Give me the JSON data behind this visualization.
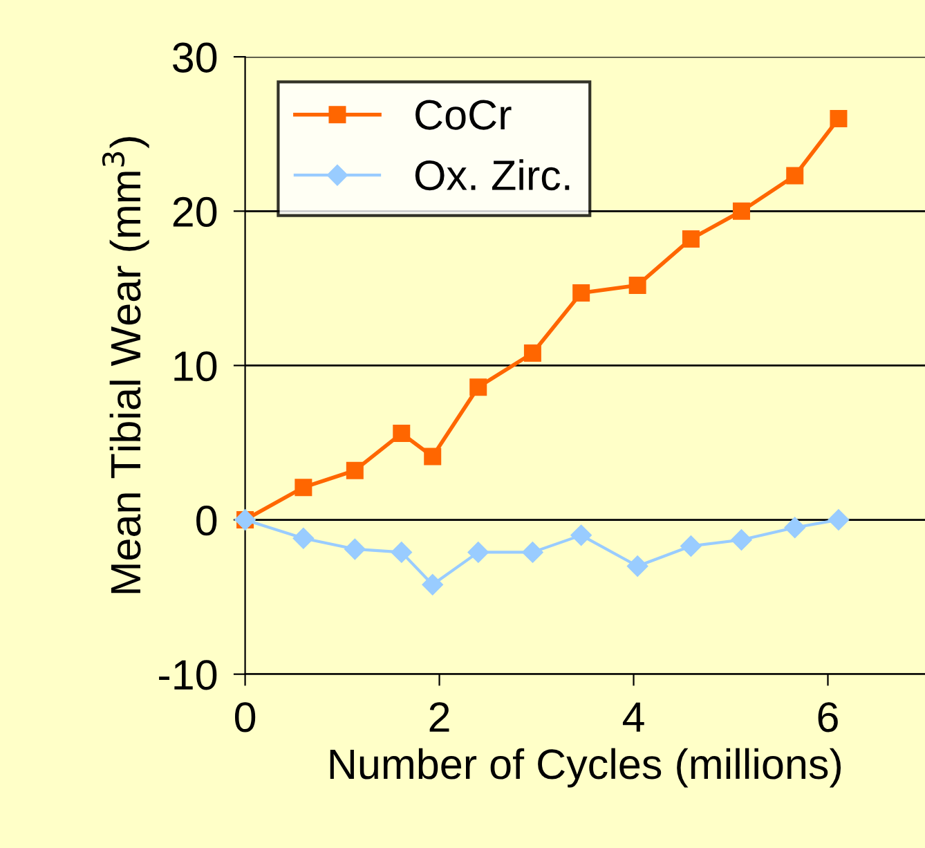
{
  "chart_data": {
    "type": "line",
    "xlabel": "Number of Cycles (millions)",
    "ylabel": "Mean Tibial Wear (mm$^{3}$)",
    "xlim": [
      0,
      7
    ],
    "xticks": [
      0,
      2,
      4,
      6
    ],
    "ylim": [
      -10,
      30
    ],
    "yticks": [
      -10,
      0,
      10,
      20,
      30
    ],
    "grid": "y",
    "legend": "top left",
    "line_style": "solid",
    "x": [
      0,
      0.6,
      1.13,
      1.61,
      1.93,
      2.4,
      2.96,
      3.46,
      4.04,
      4.59,
      5.11,
      5.66,
      6.11
    ],
    "series": [
      {
        "name": "CoCr",
        "color": "#ff6600",
        "marker": "square",
        "values": [
          0,
          2.1,
          3.2,
          5.6,
          4.1,
          8.6,
          10.8,
          14.7,
          15.2,
          18.2,
          20,
          22.3,
          26
        ]
      },
      {
        "name": "Ox. Zirc.",
        "color": "#99ccff",
        "marker": "diamond",
        "values": [
          0,
          -1.2,
          -1.9,
          -2.1,
          -4.2,
          -2.1,
          -2.1,
          -1.0,
          -3.0,
          -1.7,
          -1.3,
          -0.5,
          0
        ]
      }
    ]
  }
}
